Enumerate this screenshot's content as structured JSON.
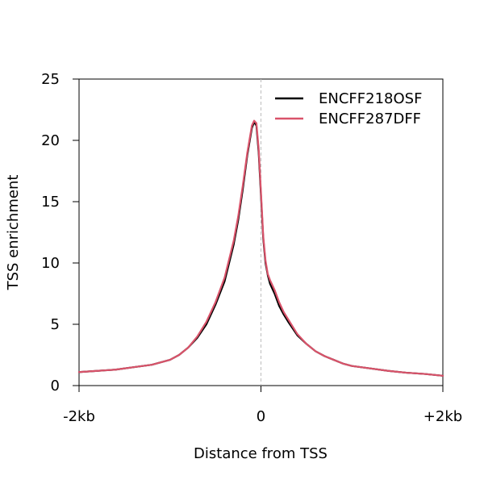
{
  "chart_data": {
    "type": "line",
    "title": "",
    "xlabel": "Distance from TSS",
    "ylabel": "TSS enrichment",
    "x_tick_labels": [
      "-2kb",
      "0",
      "+2kb"
    ],
    "x_tick_values": [
      -2000,
      0,
      2000
    ],
    "xlim": [
      -2000,
      2000
    ],
    "ylim": [
      0,
      25
    ],
    "y_ticks": [
      0,
      5,
      10,
      15,
      20,
      25
    ],
    "vertical_reference_line": 0,
    "grid": false,
    "legend_position": "top-right",
    "x": [
      -2000,
      -1800,
      -1600,
      -1400,
      -1200,
      -1000,
      -900,
      -800,
      -700,
      -600,
      -500,
      -400,
      -300,
      -250,
      -200,
      -150,
      -100,
      -75,
      -50,
      -25,
      0,
      25,
      50,
      75,
      100,
      150,
      200,
      250,
      300,
      400,
      500,
      600,
      700,
      800,
      900,
      1000,
      1200,
      1400,
      1600,
      1800,
      2000
    ],
    "series": [
      {
        "name": "ENCFF218OSF",
        "color": "#000000",
        "values": [
          1.1,
          1.2,
          1.3,
          1.5,
          1.7,
          2.1,
          2.5,
          3.1,
          3.9,
          5.0,
          6.6,
          8.5,
          11.5,
          13.5,
          16.0,
          18.8,
          21.0,
          21.5,
          21.2,
          19.0,
          15.5,
          12.0,
          10.0,
          9.0,
          8.3,
          7.5,
          6.5,
          5.8,
          5.2,
          4.1,
          3.4,
          2.8,
          2.4,
          2.1,
          1.8,
          1.6,
          1.4,
          1.2,
          1.05,
          0.95,
          0.8
        ]
      },
      {
        "name": "ENCFF287DFF",
        "color": "#d9536a",
        "values": [
          1.1,
          1.2,
          1.3,
          1.5,
          1.7,
          2.1,
          2.5,
          3.1,
          4.0,
          5.2,
          6.8,
          8.8,
          11.8,
          13.8,
          16.3,
          19.0,
          21.2,
          21.6,
          21.4,
          19.3,
          15.8,
          12.2,
          10.2,
          9.1,
          8.6,
          7.8,
          6.8,
          6.0,
          5.4,
          4.2,
          3.4,
          2.8,
          2.4,
          2.1,
          1.8,
          1.6,
          1.4,
          1.2,
          1.05,
          0.95,
          0.8
        ]
      }
    ]
  }
}
